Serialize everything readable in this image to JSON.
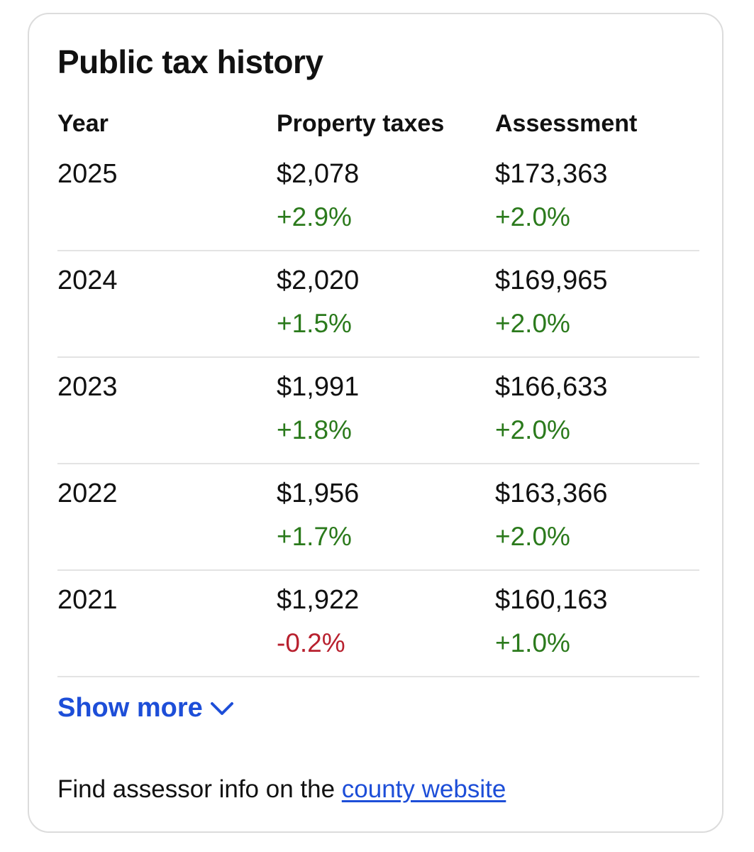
{
  "card": {
    "title": "Public tax history"
  },
  "table": {
    "headers": {
      "year": "Year",
      "property_taxes": "Property taxes",
      "assessment": "Assessment"
    },
    "rows": [
      {
        "year": "2025",
        "tax": "$2,078",
        "tax_change": "+2.9%",
        "tax_dir": "up",
        "assessment": "$173,363",
        "assessment_change": "+2.0%",
        "assessment_dir": "up"
      },
      {
        "year": "2024",
        "tax": "$2,020",
        "tax_change": "+1.5%",
        "tax_dir": "up",
        "assessment": "$169,965",
        "assessment_change": "+2.0%",
        "assessment_dir": "up"
      },
      {
        "year": "2023",
        "tax": "$1,991",
        "tax_change": "+1.8%",
        "tax_dir": "up",
        "assessment": "$166,633",
        "assessment_change": "+2.0%",
        "assessment_dir": "up"
      },
      {
        "year": "2022",
        "tax": "$1,956",
        "tax_change": "+1.7%",
        "tax_dir": "up",
        "assessment": "$163,366",
        "assessment_change": "+2.0%",
        "assessment_dir": "up"
      },
      {
        "year": "2021",
        "tax": "$1,922",
        "tax_change": "-0.2%",
        "tax_dir": "down",
        "assessment": "$160,163",
        "assessment_change": "+1.0%",
        "assessment_dir": "up"
      }
    ]
  },
  "show_more": {
    "label": "Show more",
    "icon": "chevron-down-icon"
  },
  "footer": {
    "text": "Find assessor info on the ",
    "link_label": "county website"
  },
  "colors": {
    "positive": "#2b7a1c",
    "negative": "#b8202e",
    "link": "#1d4ed8"
  }
}
